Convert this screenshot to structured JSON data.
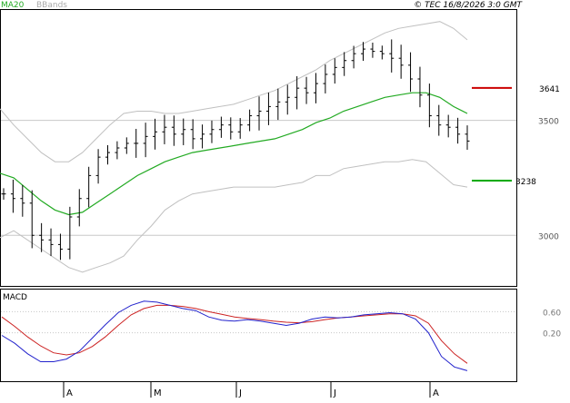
{
  "header": {
    "legend_ma": "MA20",
    "legend_bbands": "BBands",
    "timestamp": "© TEC 16/8/2026 3:0 GMT"
  },
  "colors": {
    "ma": "#22aa22",
    "bbands": "#c0c0c0",
    "bars": "#000000",
    "resistance": "#cc0000",
    "support": "#00aa00",
    "macd": "#2222cc",
    "signal": "#cc2222",
    "grid": "#c8c8c8"
  },
  "chart_data": [
    {
      "type": "ohlc",
      "yticks": [
        "3500",
        "3000"
      ],
      "ytick_values": [
        3500,
        3000
      ],
      "ylim": [
        2780,
        3980
      ],
      "x_labels": [
        "A",
        "M",
        "J",
        "J",
        "A"
      ],
      "resistance": {
        "label": "3641",
        "value": 3641
      },
      "support": {
        "label": "3238",
        "value": 3238
      },
      "series": [
        {
          "legend": "MA20",
          "values": [
            3270,
            3250,
            3200,
            3150,
            3110,
            3090,
            3100,
            3140,
            3180,
            3220,
            3260,
            3290,
            3320,
            3340,
            3360,
            3370,
            3380,
            3390,
            3400,
            3410,
            3420,
            3440,
            3460,
            3490,
            3510,
            3540,
            3560,
            3580,
            3600,
            3610,
            3620,
            3620,
            3600,
            3560,
            3530
          ]
        },
        {
          "legend": "BBands",
          "values": [
            3550,
            3480,
            3420,
            3360,
            3320,
            3320,
            3360,
            3420,
            3480,
            3530,
            3540,
            3540,
            3530,
            3530,
            3540,
            3550,
            3560,
            3570,
            3590,
            3610,
            3630,
            3660,
            3690,
            3720,
            3760,
            3790,
            3820,
            3850,
            3880,
            3900,
            3910,
            3920,
            3930,
            3900,
            3850
          ]
        },
        {
          "values": [
            2990,
            3020,
            2980,
            2940,
            2900,
            2860,
            2840,
            2860,
            2880,
            2910,
            2980,
            3040,
            3110,
            3150,
            3180,
            3190,
            3200,
            3210,
            3210,
            3210,
            3210,
            3220,
            3230,
            3260,
            3260,
            3290,
            3300,
            3310,
            3320,
            3320,
            3330,
            3320,
            3270,
            3220,
            3210
          ]
        }
      ],
      "closes": [
        3180,
        3160,
        3140,
        3000,
        2980,
        2960,
        2940,
        3080,
        3160,
        3260,
        3340,
        3360,
        3380,
        3400,
        3400,
        3430,
        3450,
        3470,
        3440,
        3460,
        3420,
        3440,
        3460,
        3480,
        3450,
        3480,
        3520,
        3540,
        3560,
        3580,
        3600,
        3640,
        3620,
        3660,
        3700,
        3730,
        3760,
        3790,
        3810,
        3800,
        3790,
        3770,
        3740,
        3680,
        3610,
        3520,
        3480,
        3470,
        3440,
        3410
      ]
    },
    {
      "type": "line",
      "title": "MACD",
      "yticks": [
        "0.60",
        "0.20"
      ],
      "ytick_values": [
        0.6,
        0.2
      ],
      "ylim": [
        -0.72,
        1.02
      ],
      "series": [
        {
          "values": [
            0.15,
            0.0,
            -0.2,
            -0.35,
            -0.35,
            -0.3,
            -0.15,
            0.1,
            0.35,
            0.58,
            0.72,
            0.8,
            0.78,
            0.72,
            0.66,
            0.62,
            0.5,
            0.44,
            0.42,
            0.45,
            0.42,
            0.38,
            0.34,
            0.38,
            0.46,
            0.5,
            0.48,
            0.5,
            0.54,
            0.56,
            0.58,
            0.56,
            0.46,
            0.2,
            -0.25,
            -0.45,
            -0.52
          ]
        },
        {
          "values": [
            0.5,
            0.32,
            0.12,
            -0.05,
            -0.18,
            -0.22,
            -0.18,
            -0.06,
            0.12,
            0.34,
            0.54,
            0.66,
            0.72,
            0.72,
            0.7,
            0.66,
            0.6,
            0.55,
            0.5,
            0.47,
            0.45,
            0.42,
            0.4,
            0.39,
            0.41,
            0.45,
            0.48,
            0.5,
            0.52,
            0.54,
            0.56,
            0.56,
            0.52,
            0.38,
            0.05,
            -0.2,
            -0.38
          ]
        }
      ]
    }
  ]
}
